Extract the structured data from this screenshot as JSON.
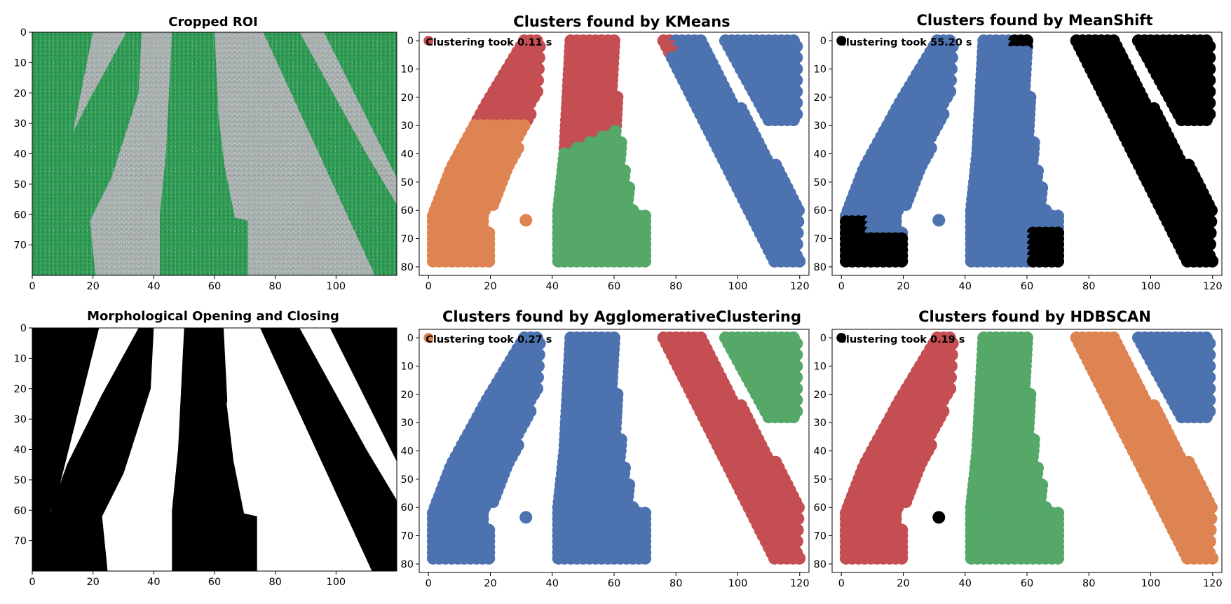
{
  "colors": {
    "blue": "#4c72b0",
    "orange": "#dd8452",
    "green": "#55a868",
    "red": "#c44e52",
    "black": "#000000",
    "field_green": "#2f9a55",
    "soil_gray": "#a7aeae"
  },
  "chart_data": [
    {
      "type": "image",
      "title": "Cropped ROI",
      "xticks": [
        "0",
        "20",
        "40",
        "60",
        "80",
        "100"
      ],
      "yticks": [
        "0",
        "10",
        "20",
        "30",
        "40",
        "50",
        "60",
        "70"
      ],
      "xlim": [
        0,
        120
      ],
      "ylim": [
        80,
        0
      ]
    },
    {
      "type": "scatter",
      "title": "Clusters found by KMeans",
      "annotation": "Clustering took 0.11 s",
      "xticks": [
        "0",
        "20",
        "40",
        "60",
        "80",
        "100",
        "120"
      ],
      "yticks": [
        "0",
        "10",
        "20",
        "30",
        "40",
        "50",
        "60",
        "70",
        "80"
      ],
      "xlim": [
        -3,
        123
      ],
      "ylim": [
        83,
        -3
      ],
      "series_colors": [
        "blue",
        "orange",
        "green",
        "red"
      ]
    },
    {
      "type": "scatter",
      "title": "Clusters found by MeanShift",
      "annotation": "Clustering took 55.20 s",
      "xticks": [
        "0",
        "20",
        "40",
        "60",
        "80",
        "100",
        "120"
      ],
      "yticks": [
        "0",
        "10",
        "20",
        "30",
        "40",
        "50",
        "60",
        "70",
        "80"
      ],
      "xlim": [
        -3,
        123
      ],
      "ylim": [
        83,
        -3
      ],
      "series_colors": [
        "blue",
        "black"
      ]
    },
    {
      "type": "image",
      "title": "Morphological Opening and Closing",
      "xticks": [
        "0",
        "20",
        "40",
        "60",
        "80",
        "100"
      ],
      "yticks": [
        "0",
        "10",
        "20",
        "30",
        "40",
        "50",
        "60",
        "70"
      ],
      "xlim": [
        0,
        120
      ],
      "ylim": [
        80,
        0
      ]
    },
    {
      "type": "scatter",
      "title": "Clusters found by AgglomerativeClustering",
      "annotation": "Clustering took 0.27 s",
      "xticks": [
        "0",
        "20",
        "40",
        "60",
        "80",
        "100",
        "120"
      ],
      "yticks": [
        "0",
        "10",
        "20",
        "30",
        "40",
        "50",
        "60",
        "70",
        "80"
      ],
      "xlim": [
        -3,
        123
      ],
      "ylim": [
        83,
        -3
      ],
      "series_colors": [
        "blue",
        "orange",
        "green",
        "red"
      ]
    },
    {
      "type": "scatter",
      "title": "Clusters found by HDBSCAN",
      "annotation": "Clustering took 0.19 s",
      "xticks": [
        "0",
        "20",
        "40",
        "60",
        "80",
        "100",
        "120"
      ],
      "yticks": [
        "0",
        "10",
        "20",
        "30",
        "40",
        "50",
        "60",
        "70",
        "80"
      ],
      "xlim": [
        -3,
        123
      ],
      "ylim": [
        83,
        -3
      ],
      "series_colors": [
        "blue",
        "orange",
        "green",
        "red",
        "black"
      ]
    }
  ]
}
